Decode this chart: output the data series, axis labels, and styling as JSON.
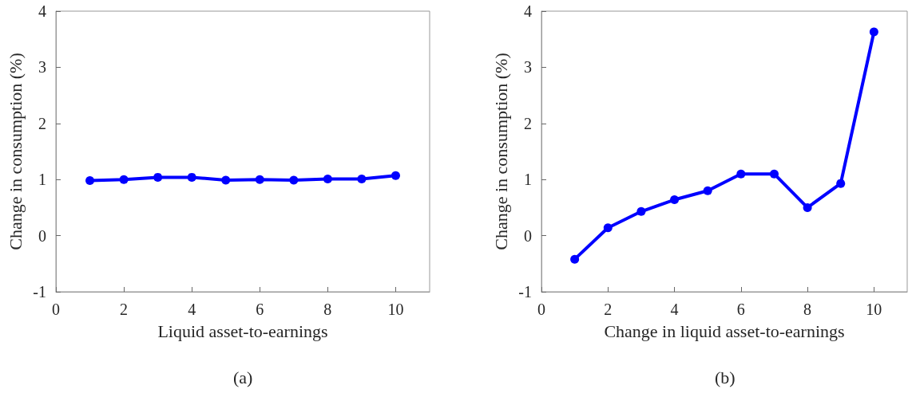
{
  "chart_data": [
    {
      "type": "line",
      "x": [
        1,
        2,
        3,
        4,
        5,
        6,
        7,
        8,
        9,
        10
      ],
      "series": [
        {
          "color": "#0000ff",
          "values": [
            0.98,
            1.0,
            1.04,
            1.04,
            0.99,
            1.0,
            0.99,
            1.01,
            1.01,
            1.07
          ]
        }
      ],
      "xlabel": "Liquid asset-to-earnings",
      "ylabel": "Change in consumption (%)",
      "xlim": [
        0,
        11
      ],
      "xticks": [
        0,
        2,
        4,
        6,
        8,
        10
      ],
      "ylim": [
        -1,
        4
      ],
      "yticks": [
        -1,
        0,
        1,
        2,
        3,
        4
      ],
      "grid": false,
      "marker": "circle",
      "line_style": "solid",
      "annotations": [
        "(a)"
      ]
    },
    {
      "type": "line",
      "x": [
        1,
        2,
        3,
        4,
        5,
        6,
        7,
        8,
        9,
        10
      ],
      "series": [
        {
          "color": "#0000ff",
          "values": [
            -0.42,
            0.14,
            0.43,
            0.64,
            0.8,
            1.1,
            1.1,
            0.5,
            0.93,
            3.63
          ]
        }
      ],
      "xlabel": "Change in liquid asset-to-earnings",
      "ylabel": "Change in consumption (%)",
      "xlim": [
        0,
        11
      ],
      "xticks": [
        0,
        2,
        4,
        6,
        8,
        10
      ],
      "ylim": [
        -1,
        4
      ],
      "yticks": [
        -1,
        0,
        1,
        2,
        3,
        4
      ],
      "grid": false,
      "marker": "circle",
      "line_style": "solid",
      "annotations": [
        "(b)"
      ]
    }
  ]
}
